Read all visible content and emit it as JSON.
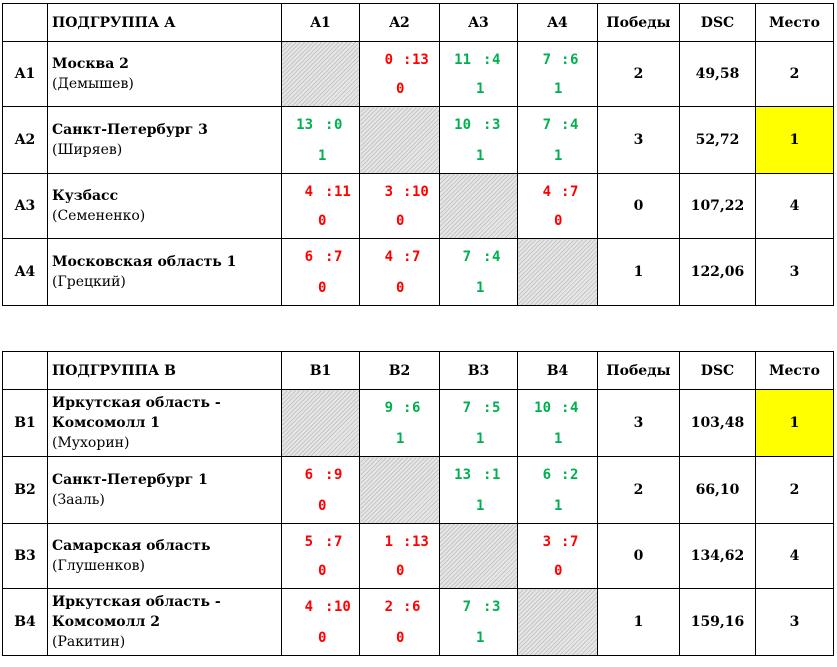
{
  "colors": {
    "win": "#00b050",
    "loss": "#ff0000",
    "highlight": "#ffff00"
  },
  "groups": [
    {
      "title": "ПОДГРУППА А",
      "cols": [
        "A1",
        "A2",
        "A3",
        "A4"
      ],
      "wins_label": "Победы",
      "dsc_label": "DSC",
      "place_label": "Место",
      "rows": [
        {
          "code": "A1",
          "name": "Москва 2",
          "captain": "(Демышев)",
          "wins": "2",
          "dsc": "49,58",
          "place": "2",
          "results": [
            null,
            {
              "a": "0",
              "b": "13",
              "p": "0"
            },
            {
              "a": "11",
              "b": "4",
              "p": "1"
            },
            {
              "a": "7",
              "b": "6",
              "p": "1"
            }
          ]
        },
        {
          "code": "A2",
          "name": "Санкт-Петербург 3",
          "captain": "(Ширяев)",
          "wins": "3",
          "dsc": "52,72",
          "place": "1",
          "results": [
            {
              "a": "13",
              "b": "0",
              "p": "1"
            },
            null,
            {
              "a": "10",
              "b": "3",
              "p": "1"
            },
            {
              "a": "7",
              "b": "4",
              "p": "1"
            }
          ]
        },
        {
          "code": "A3",
          "name": "Кузбасс",
          "captain": "(Семененко)",
          "wins": "0",
          "dsc": "107,22",
          "place": "4",
          "results": [
            {
              "a": "4",
              "b": "11",
              "p": "0"
            },
            {
              "a": "3",
              "b": "10",
              "p": "0"
            },
            null,
            {
              "a": "4",
              "b": "7",
              "p": "0"
            }
          ]
        },
        {
          "code": "A4",
          "name": "Московская область 1",
          "captain": "(Грецкий)",
          "wins": "1",
          "dsc": "122,06",
          "place": "3",
          "results": [
            {
              "a": "6",
              "b": "7",
              "p": "0"
            },
            {
              "a": "4",
              "b": "7",
              "p": "0"
            },
            {
              "a": "7",
              "b": "4",
              "p": "1"
            },
            null
          ]
        }
      ]
    },
    {
      "title": "ПОДГРУППА В",
      "cols": [
        "B1",
        "B2",
        "B3",
        "B4"
      ],
      "wins_label": "Победы",
      "dsc_label": "DSC",
      "place_label": "Место",
      "rows": [
        {
          "code": "B1",
          "name": "Иркутская область - Комсомолл 1",
          "captain": "(Мухорин)",
          "wins": "3",
          "dsc": "103,48",
          "place": "1",
          "results": [
            null,
            {
              "a": "9",
              "b": "6",
              "p": "1"
            },
            {
              "a": "7",
              "b": "5",
              "p": "1"
            },
            {
              "a": "10",
              "b": "4",
              "p": "1"
            }
          ]
        },
        {
          "code": "B2",
          "name": "Санкт-Петербург 1",
          "captain": "(Зааль)",
          "wins": "2",
          "dsc": "66,10",
          "place": "2",
          "results": [
            {
              "a": "6",
              "b": "9",
              "p": "0"
            },
            null,
            {
              "a": "13",
              "b": "1",
              "p": "1"
            },
            {
              "a": "6",
              "b": "2",
              "p": "1"
            }
          ]
        },
        {
          "code": "B3",
          "name": "Самарская область",
          "captain": "(Глушенков)",
          "wins": "0",
          "dsc": "134,62",
          "place": "4",
          "results": [
            {
              "a": "5",
              "b": "7",
              "p": "0"
            },
            {
              "a": "1",
              "b": "13",
              "p": "0"
            },
            null,
            {
              "a": "3",
              "b": "7",
              "p": "0"
            }
          ]
        },
        {
          "code": "B4",
          "name": "Иркутская область - Комсомолл 2",
          "captain": "(Ракитин)",
          "wins": "1",
          "dsc": "159,16",
          "place": "3",
          "results": [
            {
              "a": "4",
              "b": "10",
              "p": "0"
            },
            {
              "a": "2",
              "b": "6",
              "p": "0"
            },
            {
              "a": "7",
              "b": "3",
              "p": "1"
            },
            null
          ]
        }
      ]
    }
  ]
}
